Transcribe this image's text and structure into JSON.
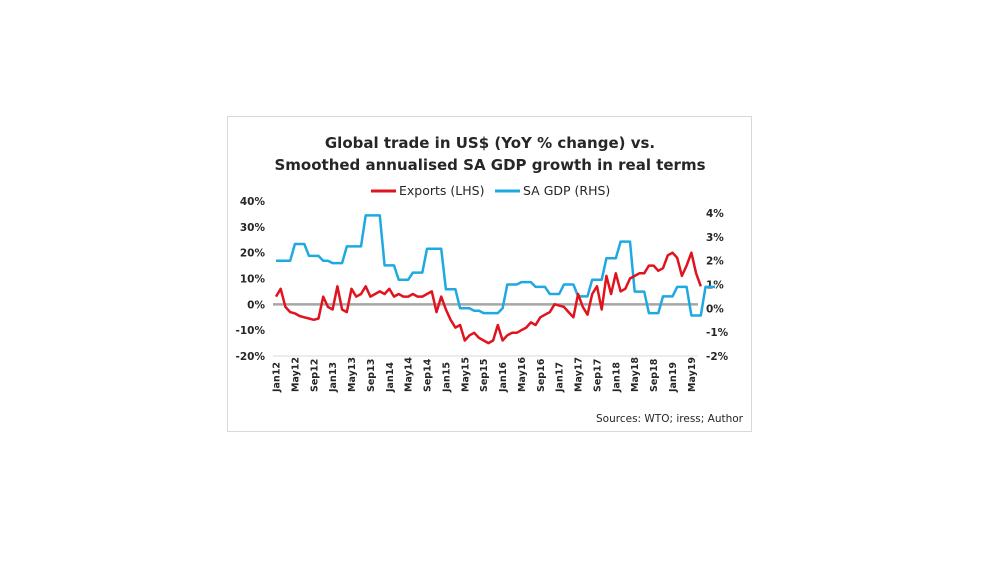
{
  "chart_data": {
    "type": "line",
    "title": [
      "Global trade in US$ (YoY % change) vs.",
      "Smoothed annualised SA GDP growth in real terms"
    ],
    "legend": {
      "position": "top",
      "entries": [
        "Exports (LHS)",
        "SA GDP (RHS)"
      ]
    },
    "source": "Sources: WTO; iress; Author",
    "x_tick_labels": [
      "Jan12",
      "May12",
      "Sep12",
      "Jan13",
      "May13",
      "Sep13",
      "Jan14",
      "May14",
      "Sep14",
      "Jan15",
      "May15",
      "Sep15",
      "Jan16",
      "May16",
      "Sep16",
      "Jan17",
      "May17",
      "Sep17",
      "Jan18",
      "May18",
      "Sep18",
      "Jan19",
      "May19"
    ],
    "x_start": "Jan12",
    "x_end": "Jul19",
    "y_left": {
      "label": "",
      "ticks": [
        "-20%",
        "-10%",
        "0%",
        "10%",
        "20%",
        "30%",
        "40%"
      ],
      "range": [
        -20,
        40
      ]
    },
    "y_right": {
      "label": "",
      "ticks": [
        "-2%",
        "-1%",
        "0%",
        "1%",
        "2%",
        "3%",
        "4%"
      ],
      "range": [
        -2,
        4
      ]
    },
    "zero_line": {
      "color": "#a6a6a6",
      "axis": "left",
      "value": 0
    },
    "series": [
      {
        "name": "Exports (LHS)",
        "axis": "left",
        "color": "#e0141e",
        "values": [
          3,
          6,
          -1,
          -3,
          -3.5,
          -4.5,
          -5,
          -5.5,
          -6,
          -5.5,
          3,
          -1,
          -2,
          7,
          -2,
          -3,
          6,
          3,
          4,
          7,
          3,
          4,
          5,
          4,
          6,
          3,
          4,
          3,
          3,
          4,
          3,
          3,
          4,
          5,
          -3,
          3,
          -2,
          -6,
          -9,
          -8,
          -14,
          -12,
          -11,
          -13,
          -14,
          -15,
          -14,
          -8,
          -14,
          -12,
          -11,
          -11,
          -10,
          -9,
          -7,
          -8,
          -5,
          -4,
          -3,
          0,
          -0.5,
          -1,
          -3,
          -5,
          4,
          -1,
          -4,
          4,
          7,
          -2,
          11,
          4,
          12,
          5,
          6,
          10,
          11,
          12,
          12,
          15,
          15,
          13,
          14,
          19,
          20,
          18,
          11,
          15,
          20,
          12,
          7,
          13,
          10,
          12,
          5,
          1,
          5,
          -2,
          -4,
          -3,
          -3,
          -2,
          -1,
          -4,
          -3,
          -7
        ],
        "note": "monthly approximation"
      },
      {
        "name": "SA GDP (RHS)",
        "axis": "right",
        "color": "#1fa9e1",
        "values": [
          2.0,
          2.0,
          2.0,
          2.0,
          2.7,
          2.7,
          2.7,
          2.2,
          2.2,
          2.2,
          2.0,
          2.0,
          1.9,
          1.9,
          1.9,
          2.6,
          2.6,
          2.6,
          2.6,
          3.9,
          3.9,
          3.9,
          3.9,
          1.8,
          1.8,
          1.8,
          1.2,
          1.2,
          1.2,
          1.5,
          1.5,
          1.5,
          2.5,
          2.5,
          2.5,
          2.5,
          0.8,
          0.8,
          0.8,
          0.0,
          0.0,
          0.0,
          -0.1,
          -0.1,
          -0.2,
          -0.2,
          -0.2,
          -0.2,
          0.0,
          1.0,
          1.0,
          1.0,
          1.1,
          1.1,
          1.1,
          0.9,
          0.9,
          0.9,
          0.6,
          0.6,
          0.6,
          1.0,
          1.0,
          1.0,
          0.5,
          0.5,
          0.5,
          1.2,
          1.2,
          1.2,
          2.1,
          2.1,
          2.1,
          2.8,
          2.8,
          2.8,
          0.7,
          0.7,
          0.7,
          -0.2,
          -0.2,
          -0.2,
          0.5,
          0.5,
          0.5,
          0.9,
          0.9,
          0.9,
          -0.3,
          -0.3,
          -0.3,
          0.9,
          0.9,
          0.9
        ]
      }
    ]
  }
}
